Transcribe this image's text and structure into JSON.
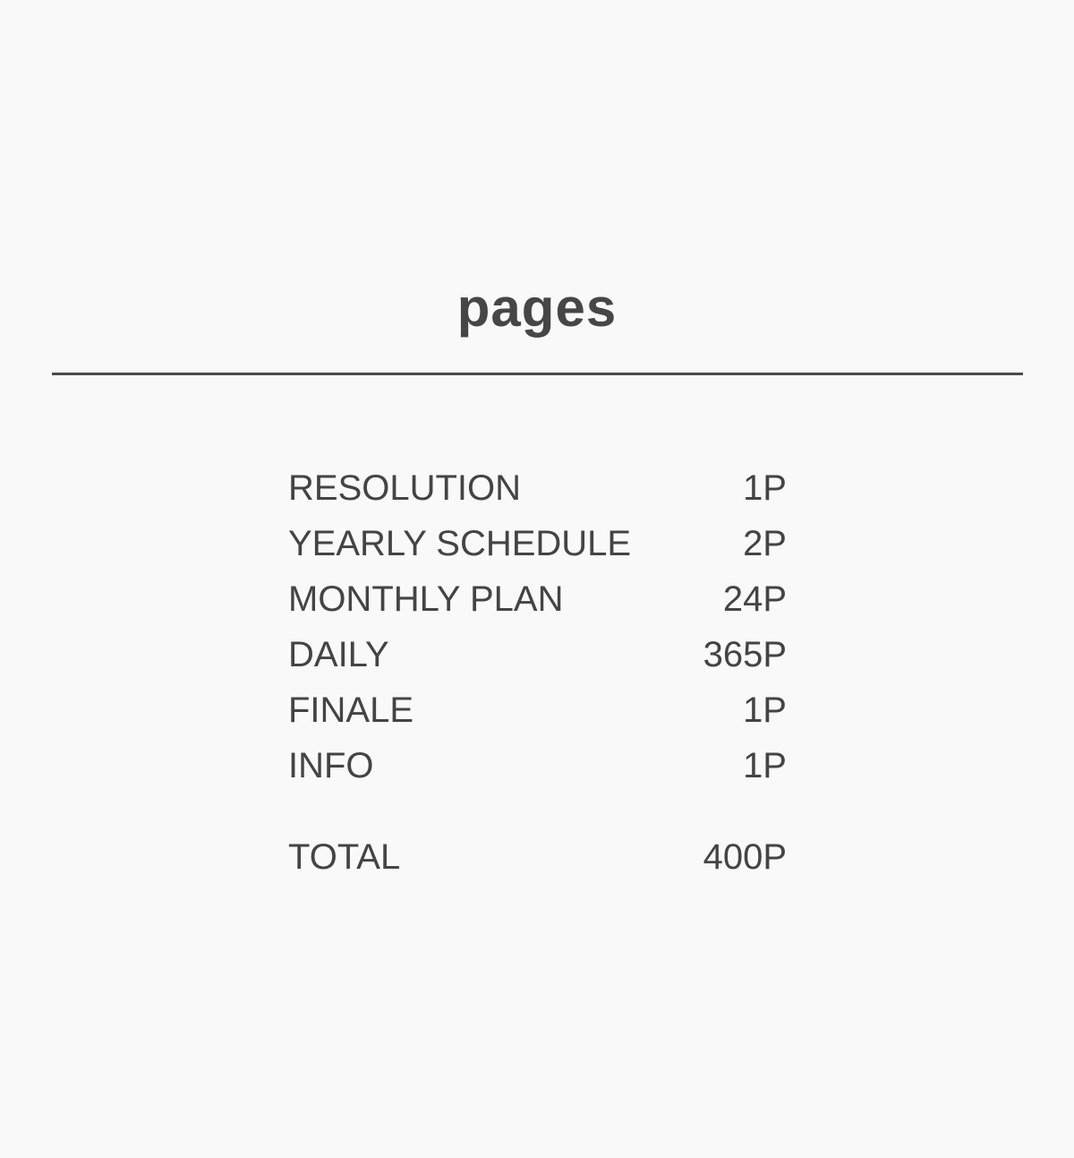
{
  "title": "pages",
  "items": [
    {
      "label": "RESOLUTION",
      "value": "1P"
    },
    {
      "label": "YEARLY SCHEDULE",
      "value": "2P"
    },
    {
      "label": "MONTHLY PLAN",
      "value": "24P"
    },
    {
      "label": "DAILY",
      "value": "365P"
    },
    {
      "label": "FINALE",
      "value": "1P"
    },
    {
      "label": "INFO",
      "value": "1P"
    }
  ],
  "total": {
    "label": "TOTAL",
    "value": "400P"
  }
}
